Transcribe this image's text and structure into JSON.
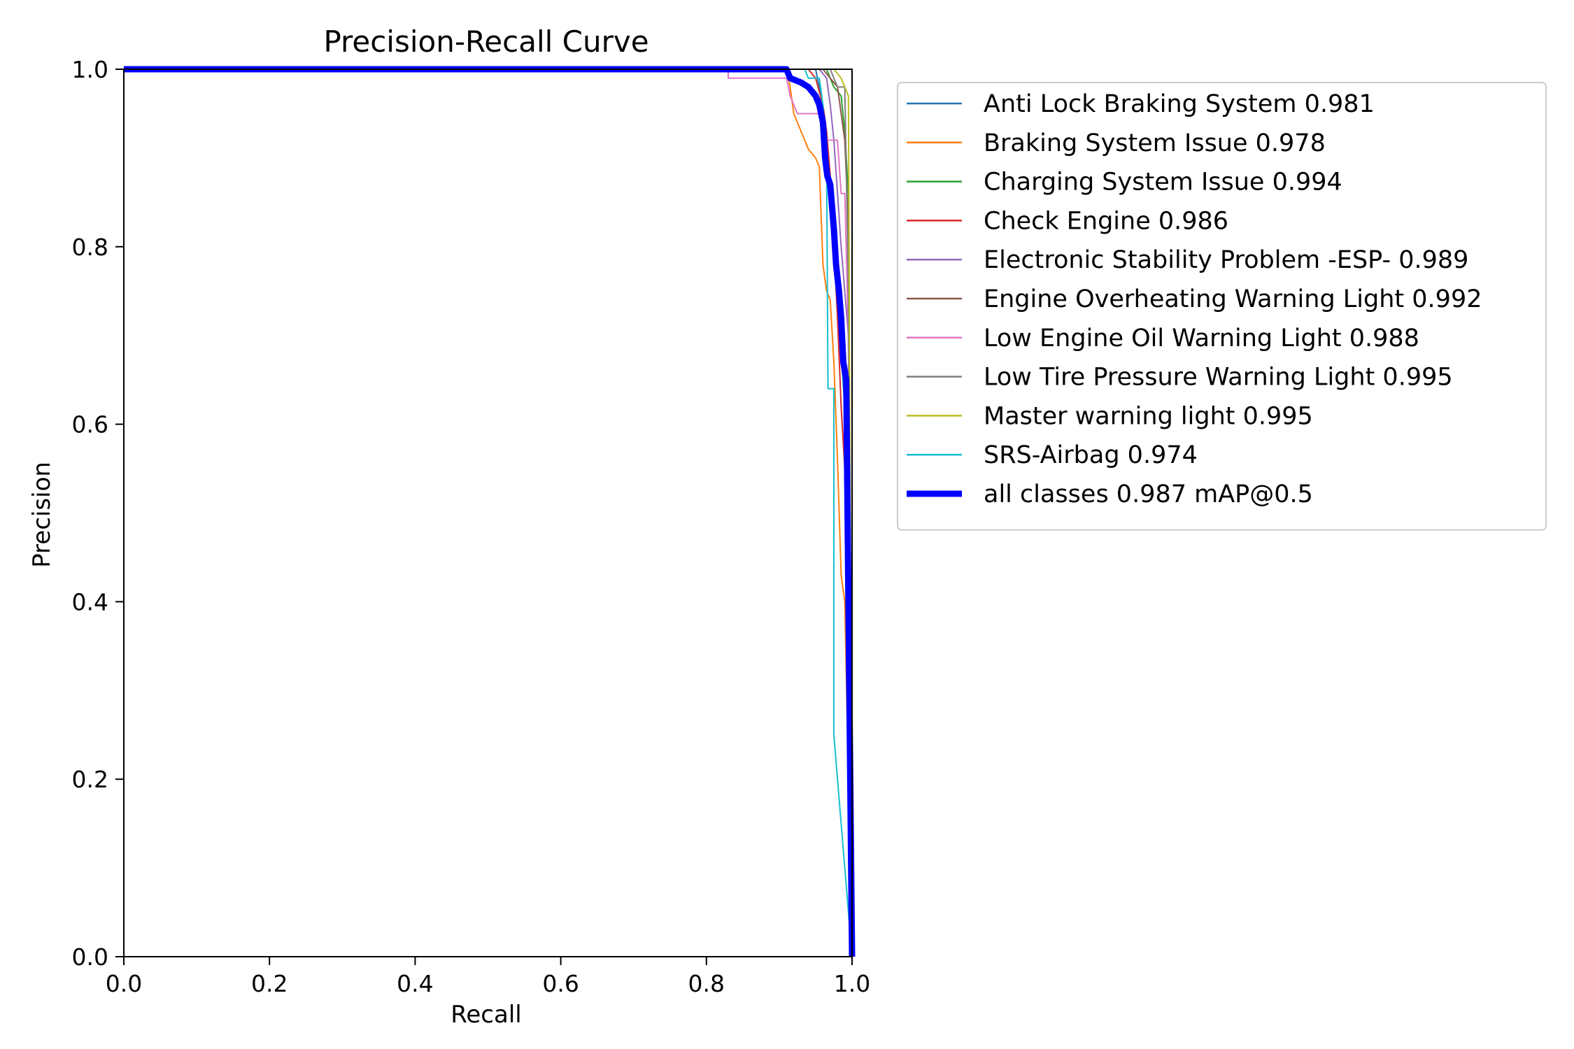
{
  "chart_data": {
    "type": "line",
    "title": "Precision-Recall Curve",
    "xlabel": "Recall",
    "ylabel": "Precision",
    "xlim": [
      0,
      1
    ],
    "ylim": [
      0,
      1
    ],
    "xticks": [
      "0.0",
      "0.2",
      "0.4",
      "0.6",
      "0.8",
      "1.0"
    ],
    "yticks": [
      "0.0",
      "0.2",
      "0.4",
      "0.6",
      "0.8",
      "1.0"
    ],
    "grid": false,
    "legend_position": "outside-right-top",
    "series": [
      {
        "name": "Anti Lock Braking System 0.981",
        "color": "#1f77b4",
        "emphasis": false,
        "points": [
          [
            0,
            1
          ],
          [
            0.95,
            1
          ],
          [
            0.955,
            0.98
          ],
          [
            0.96,
            0.95
          ],
          [
            0.965,
            0.92
          ],
          [
            0.97,
            0.87
          ],
          [
            0.975,
            0.82
          ],
          [
            0.98,
            0.75
          ],
          [
            0.985,
            0.68
          ],
          [
            0.99,
            0.62
          ],
          [
            0.995,
            0.5
          ],
          [
            1,
            0.0
          ]
        ]
      },
      {
        "name": "Braking System Issue 0.978",
        "color": "#ff7f0e",
        "emphasis": false,
        "points": [
          [
            0,
            1
          ],
          [
            0.91,
            1
          ],
          [
            0.915,
            0.98
          ],
          [
            0.92,
            0.95
          ],
          [
            0.93,
            0.93
          ],
          [
            0.94,
            0.91
          ],
          [
            0.95,
            0.9
          ],
          [
            0.955,
            0.89
          ],
          [
            0.96,
            0.78
          ],
          [
            0.965,
            0.75
          ],
          [
            0.97,
            0.74
          ],
          [
            0.975,
            0.67
          ],
          [
            0.98,
            0.56
          ],
          [
            0.985,
            0.43
          ],
          [
            0.99,
            0.4
          ],
          [
            1,
            0.0
          ]
        ]
      },
      {
        "name": "Charging System Issue 0.994",
        "color": "#2ca02c",
        "emphasis": false,
        "points": [
          [
            0,
            1
          ],
          [
            0.965,
            1
          ],
          [
            0.97,
            0.99
          ],
          [
            0.975,
            0.98
          ],
          [
            0.985,
            0.97
          ],
          [
            0.99,
            0.93
          ],
          [
            0.995,
            0.86
          ],
          [
            1,
            0.0
          ]
        ]
      },
      {
        "name": "Check Engine 0.986",
        "color": "#d62728",
        "emphasis": false,
        "points": [
          [
            0,
            1
          ],
          [
            0.94,
            1
          ],
          [
            0.95,
            0.99
          ],
          [
            0.96,
            0.96
          ],
          [
            0.965,
            0.93
          ],
          [
            0.97,
            0.88
          ],
          [
            0.975,
            0.8
          ],
          [
            0.98,
            0.72
          ],
          [
            0.985,
            0.62
          ],
          [
            0.99,
            0.55
          ],
          [
            1,
            0.0
          ]
        ]
      },
      {
        "name": "Electronic Stability Problem -ESP- 0.989",
        "color": "#9467bd",
        "emphasis": false,
        "points": [
          [
            0,
            1
          ],
          [
            0.955,
            1
          ],
          [
            0.965,
            0.99
          ],
          [
            0.97,
            0.96
          ],
          [
            0.975,
            0.92
          ],
          [
            0.98,
            0.86
          ],
          [
            0.985,
            0.8
          ],
          [
            0.99,
            0.75
          ],
          [
            0.995,
            0.7
          ],
          [
            1,
            0.0
          ]
        ]
      },
      {
        "name": "Engine Overheating Warning Light 0.992",
        "color": "#8c564b",
        "emphasis": false,
        "points": [
          [
            0,
            1
          ],
          [
            0.96,
            1
          ],
          [
            0.97,
            0.99
          ],
          [
            0.98,
            0.98
          ],
          [
            0.99,
            0.92
          ],
          [
            0.995,
            0.82
          ],
          [
            1,
            0.0
          ]
        ]
      },
      {
        "name": "Low Engine Oil Warning Light 0.988",
        "color": "#e377c2",
        "emphasis": false,
        "points": [
          [
            0,
            1
          ],
          [
            0.83,
            1
          ],
          [
            0.83,
            0.99
          ],
          [
            0.91,
            0.99
          ],
          [
            0.915,
            0.97
          ],
          [
            0.92,
            0.96
          ],
          [
            0.925,
            0.95
          ],
          [
            0.96,
            0.95
          ],
          [
            0.965,
            0.92
          ],
          [
            0.98,
            0.92
          ],
          [
            0.985,
            0.86
          ],
          [
            0.99,
            0.86
          ],
          [
            0.995,
            0.7
          ],
          [
            1,
            0.0
          ]
        ]
      },
      {
        "name": "Low Tire Pressure Warning Light 0.995",
        "color": "#7f7f7f",
        "emphasis": false,
        "points": [
          [
            0,
            1
          ],
          [
            0.97,
            1
          ],
          [
            0.975,
            0.99
          ],
          [
            0.98,
            0.98
          ],
          [
            0.99,
            0.98
          ],
          [
            0.995,
            0.75
          ],
          [
            1,
            0.0
          ]
        ]
      },
      {
        "name": "Master warning light 0.995",
        "color": "#bcbd22",
        "emphasis": false,
        "points": [
          [
            0,
            1
          ],
          [
            0.975,
            1
          ],
          [
            0.985,
            0.99
          ],
          [
            0.995,
            0.97
          ],
          [
            1,
            0.0
          ]
        ]
      },
      {
        "name": "SRS-Airbag 0.974",
        "color": "#17becf",
        "emphasis": false,
        "points": [
          [
            0,
            1
          ],
          [
            0.935,
            1
          ],
          [
            0.94,
            0.99
          ],
          [
            0.955,
            0.99
          ],
          [
            0.96,
            0.96
          ],
          [
            0.965,
            0.9
          ],
          [
            0.967,
            0.64
          ],
          [
            0.975,
            0.64
          ],
          [
            0.975,
            0.58
          ],
          [
            0.975,
            0.25
          ],
          [
            1,
            0.0
          ]
        ]
      },
      {
        "name": "all classes 0.987 mAP@0.5",
        "color": "#0000ff",
        "emphasis": true,
        "points": [
          [
            0,
            1
          ],
          [
            0.91,
            1
          ],
          [
            0.915,
            0.99
          ],
          [
            0.93,
            0.985
          ],
          [
            0.94,
            0.98
          ],
          [
            0.95,
            0.97
          ],
          [
            0.955,
            0.96
          ],
          [
            0.96,
            0.94
          ],
          [
            0.963,
            0.9
          ],
          [
            0.966,
            0.88
          ],
          [
            0.97,
            0.87
          ],
          [
            0.975,
            0.82
          ],
          [
            0.978,
            0.78
          ],
          [
            0.982,
            0.75
          ],
          [
            0.985,
            0.72
          ],
          [
            0.988,
            0.67
          ],
          [
            0.992,
            0.65
          ],
          [
            0.995,
            0.4
          ],
          [
            1,
            0.0
          ]
        ]
      }
    ]
  }
}
